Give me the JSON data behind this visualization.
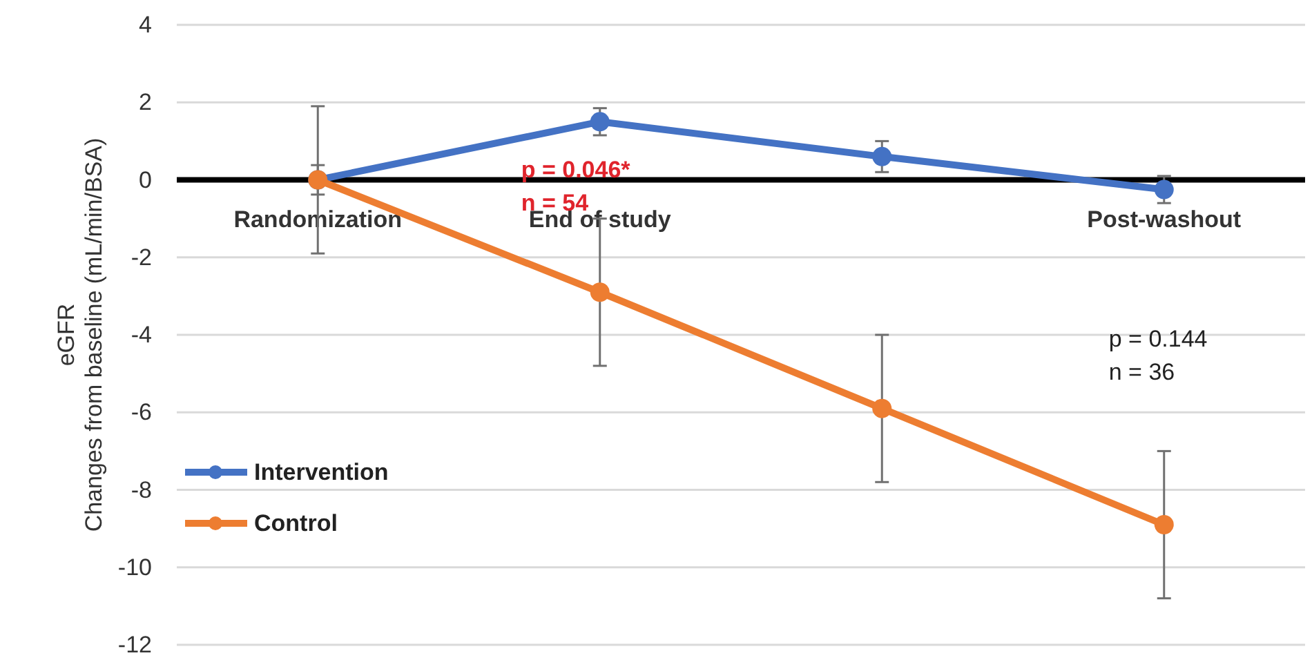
{
  "chart_data": {
    "type": "line",
    "ylabel": "eGFR\nChanges from baseline (mL/min/BSA)",
    "categories": [
      "Randomization",
      "End of study",
      null,
      "Post-washout"
    ],
    "series": [
      {
        "name": "Intervention",
        "color": "#4472c4",
        "values": [
          0,
          1.5,
          0.6,
          -0.25
        ],
        "errors": [
          0.38,
          0.35,
          0.4,
          0.35
        ]
      },
      {
        "name": "Control",
        "color": "#ed7d31",
        "values": [
          0,
          -2.9,
          -5.9,
          -8.9
        ],
        "errors": [
          1.9,
          1.9,
          1.9,
          1.9
        ]
      }
    ],
    "ylim": [
      -12,
      4
    ],
    "yticks": [
      -12,
      -10,
      -8,
      -6,
      -4,
      -2,
      0,
      2,
      4
    ],
    "grid": "y",
    "legend": "bottom left",
    "marker": "circle",
    "line_style": "solid",
    "annotations": [
      "p = 0.046*\nn = 54",
      "p = 0.144\nn = 36"
    ]
  }
}
